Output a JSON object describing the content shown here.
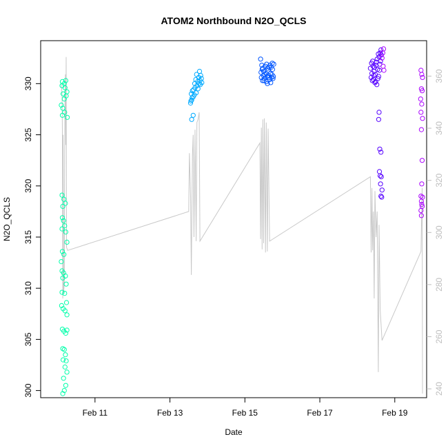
{
  "chart_data": {
    "type": "scatter",
    "title": "ATOM2 Northbound N2O_QCLS",
    "xlabel": "Date",
    "ylabel": "N2O_QCLS",
    "xlim": [
      9.55,
      19.85
    ],
    "ylim": [
      299.3,
      334.2
    ],
    "y2lim": [
      236.6,
      373.6
    ],
    "x_ticks": [
      {
        "value": 11,
        "label": "Feb 11"
      },
      {
        "value": 13,
        "label": "Feb 13"
      },
      {
        "value": 15,
        "label": "Feb 15"
      },
      {
        "value": 17,
        "label": "Feb 17"
      },
      {
        "value": 19,
        "label": "Feb 19"
      }
    ],
    "y_ticks": [
      300,
      305,
      310,
      315,
      320,
      325,
      330
    ],
    "y2_ticks": [
      240,
      260,
      280,
      300,
      320,
      340,
      360
    ],
    "grid": false,
    "series": [
      {
        "color": "#00ffaa",
        "points": [
          [
            10.13,
            330.2
          ],
          [
            10.18,
            330.0
          ],
          [
            10.22,
            330.3
          ],
          [
            10.12,
            329.8
          ],
          [
            10.2,
            329.6
          ],
          [
            10.25,
            329.2
          ],
          [
            10.15,
            329.0
          ],
          [
            10.23,
            328.8
          ],
          [
            10.18,
            328.5
          ],
          [
            10.1,
            327.9
          ],
          [
            10.14,
            327.6
          ],
          [
            10.19,
            327.2
          ],
          [
            10.13,
            326.9
          ],
          [
            10.26,
            326.7
          ],
          [
            10.12,
            319.1
          ],
          [
            10.17,
            318.7
          ],
          [
            10.21,
            318.3
          ],
          [
            10.14,
            318.0
          ],
          [
            10.13,
            316.9
          ],
          [
            10.16,
            316.6
          ],
          [
            10.19,
            316.1
          ],
          [
            10.12,
            315.8
          ],
          [
            10.22,
            315.5
          ],
          [
            10.25,
            314.5
          ],
          [
            10.13,
            313.6
          ],
          [
            10.17,
            313.3
          ],
          [
            10.1,
            312.6
          ],
          [
            10.12,
            311.7
          ],
          [
            10.16,
            311.5
          ],
          [
            10.21,
            311.2
          ],
          [
            10.14,
            311.0
          ],
          [
            10.23,
            310.4
          ],
          [
            10.12,
            309.6
          ],
          [
            10.19,
            309.5
          ],
          [
            10.24,
            308.6
          ],
          [
            10.11,
            308.3
          ],
          [
            10.15,
            308.0
          ],
          [
            10.2,
            307.8
          ],
          [
            10.25,
            307.4
          ],
          [
            10.13,
            306.0
          ],
          [
            10.17,
            305.8
          ],
          [
            10.22,
            305.6
          ],
          [
            10.25,
            305.9
          ],
          [
            10.14,
            304.1
          ],
          [
            10.18,
            304.0
          ],
          [
            10.21,
            303.5
          ],
          [
            10.15,
            303.0
          ],
          [
            10.23,
            302.9
          ],
          [
            10.2,
            302.3
          ],
          [
            10.25,
            301.8
          ],
          [
            10.16,
            301.2
          ],
          [
            10.22,
            300.5
          ],
          [
            10.18,
            300.0
          ],
          [
            10.14,
            299.7
          ]
        ]
      },
      {
        "color": "#00aaff",
        "points": [
          [
            13.55,
            328.1
          ],
          [
            13.58,
            328.4
          ],
          [
            13.62,
            328.7
          ],
          [
            13.57,
            329.0
          ],
          [
            13.6,
            329.3
          ],
          [
            13.65,
            328.9
          ],
          [
            13.7,
            329.1
          ],
          [
            13.67,
            329.6
          ],
          [
            13.72,
            329.8
          ],
          [
            13.75,
            329.5
          ],
          [
            13.78,
            330.0
          ],
          [
            13.8,
            330.3
          ],
          [
            13.77,
            330.6
          ],
          [
            13.82,
            330.8
          ],
          [
            13.79,
            331.2
          ],
          [
            13.84,
            330.5
          ],
          [
            13.74,
            330.2
          ],
          [
            13.69,
            330.4
          ],
          [
            13.63,
            329.4
          ],
          [
            13.59,
            328.6
          ],
          [
            13.56,
            328.3
          ],
          [
            13.66,
            330.0
          ],
          [
            13.71,
            330.9
          ],
          [
            13.62,
            326.9
          ],
          [
            13.58,
            326.5
          ],
          [
            13.81,
            329.9
          ],
          [
            13.85,
            330.1
          ]
        ]
      },
      {
        "color": "#0055ff",
        "points": [
          [
            15.42,
            332.4
          ],
          [
            15.45,
            331.8
          ],
          [
            15.48,
            331.5
          ],
          [
            15.5,
            331.2
          ],
          [
            15.53,
            330.9
          ],
          [
            15.56,
            331.0
          ],
          [
            15.59,
            330.7
          ],
          [
            15.62,
            331.3
          ],
          [
            15.65,
            331.6
          ],
          [
            15.68,
            331.0
          ],
          [
            15.71,
            330.6
          ],
          [
            15.74,
            331.4
          ],
          [
            15.77,
            331.9
          ],
          [
            15.44,
            330.6
          ],
          [
            15.47,
            330.3
          ],
          [
            15.52,
            330.5
          ],
          [
            15.57,
            330.2
          ],
          [
            15.6,
            330.0
          ],
          [
            15.63,
            330.8
          ],
          [
            15.66,
            330.4
          ],
          [
            15.69,
            330.1
          ],
          [
            15.72,
            330.9
          ],
          [
            15.75,
            330.5
          ],
          [
            15.46,
            331.4
          ],
          [
            15.54,
            331.7
          ],
          [
            15.61,
            331.5
          ],
          [
            15.7,
            331.6
          ],
          [
            15.73,
            332.0
          ],
          [
            15.49,
            330.8
          ],
          [
            15.58,
            331.9
          ],
          [
            15.64,
            330.6
          ],
          [
            15.76,
            330.7
          ],
          [
            15.43,
            331.1
          ],
          [
            15.51,
            330.3
          ],
          [
            15.67,
            331.8
          ]
        ]
      },
      {
        "color": "#5500ff",
        "points": [
          [
            18.35,
            331.5
          ],
          [
            18.38,
            332.0
          ],
          [
            18.42,
            331.7
          ],
          [
            18.45,
            331.2
          ],
          [
            18.48,
            330.9
          ],
          [
            18.5,
            331.8
          ],
          [
            18.53,
            332.4
          ],
          [
            18.56,
            332.9
          ],
          [
            18.58,
            332.6
          ],
          [
            18.61,
            333.0
          ],
          [
            18.63,
            333.3
          ],
          [
            18.37,
            330.6
          ],
          [
            18.4,
            330.3
          ],
          [
            18.44,
            330.8
          ],
          [
            18.47,
            330.1
          ],
          [
            18.52,
            329.9
          ],
          [
            18.55,
            330.5
          ],
          [
            18.59,
            331.3
          ],
          [
            18.62,
            332.2
          ],
          [
            18.39,
            331.0
          ],
          [
            18.43,
            330.4
          ],
          [
            18.46,
            331.6
          ],
          [
            18.51,
            332.1
          ],
          [
            18.54,
            331.4
          ],
          [
            18.57,
            330.7
          ],
          [
            18.6,
            331.9
          ],
          [
            18.64,
            332.8
          ],
          [
            18.41,
            332.2
          ],
          [
            18.49,
            330.2
          ],
          [
            18.58,
            327.2
          ],
          [
            18.57,
            326.5
          ],
          [
            18.6,
            323.6
          ],
          [
            18.63,
            323.3
          ],
          [
            18.59,
            321.4
          ],
          [
            18.61,
            321.0
          ],
          [
            18.64,
            320.9
          ],
          [
            18.62,
            320.2
          ],
          [
            18.63,
            319.0
          ],
          [
            18.65,
            318.9
          ],
          [
            18.66,
            319.6
          ]
        ]
      },
      {
        "color": "#aa00ff",
        "points": [
          [
            18.7,
            333.4
          ],
          [
            18.68,
            333.0
          ],
          [
            18.66,
            332.5
          ],
          [
            18.69,
            331.7
          ],
          [
            18.71,
            331.3
          ],
          [
            19.7,
            331.3
          ],
          [
            19.72,
            330.9
          ],
          [
            19.74,
            330.6
          ],
          [
            19.71,
            329.5
          ],
          [
            19.73,
            329.3
          ],
          [
            19.69,
            328.5
          ],
          [
            19.72,
            328.0
          ],
          [
            19.7,
            327.2
          ],
          [
            19.74,
            326.6
          ],
          [
            19.71,
            325.5
          ],
          [
            19.73,
            322.5
          ],
          [
            19.72,
            320.2
          ],
          [
            19.7,
            319.0
          ],
          [
            19.74,
            318.9
          ],
          [
            19.71,
            318.5
          ],
          [
            19.72,
            318.2
          ],
          [
            19.73,
            318.0
          ],
          [
            19.7,
            317.6
          ],
          [
            19.71,
            317.1
          ]
        ]
      }
    ],
    "secondary_line": {
      "color": "#c8c8c8",
      "points": [
        [
          10.1,
          330.0
        ],
        [
          10.12,
          329.0
        ],
        [
          10.13,
          325.5
        ],
        [
          10.14,
          309.0
        ],
        [
          10.15,
          325.0
        ],
        [
          10.16,
          309.5
        ],
        [
          10.18,
          310.5
        ],
        [
          10.19,
          323.0
        ],
        [
          10.2,
          328.5
        ],
        [
          10.21,
          330.9
        ],
        [
          10.22,
          324.0
        ],
        [
          10.23,
          332.6
        ],
        [
          10.24,
          314.0
        ],
        [
          10.27,
          313.7
        ],
        [
          13.5,
          317.5
        ],
        [
          13.52,
          323.2
        ],
        [
          13.55,
          319.0
        ],
        [
          13.57,
          311.3
        ],
        [
          13.6,
          323.0
        ],
        [
          13.62,
          325.0
        ],
        [
          13.64,
          315.0
        ],
        [
          13.67,
          325.5
        ],
        [
          13.7,
          314.6
        ],
        [
          13.72,
          326.2
        ],
        [
          13.75,
          326.5
        ],
        [
          13.78,
          327.2
        ],
        [
          13.8,
          314.6
        ],
        [
          15.4,
          324.2
        ],
        [
          15.42,
          314.8
        ],
        [
          15.44,
          325.7
        ],
        [
          15.46,
          313.8
        ],
        [
          15.48,
          326.5
        ],
        [
          15.5,
          314.4
        ],
        [
          15.52,
          326.6
        ],
        [
          15.55,
          313.5
        ],
        [
          15.57,
          326.2
        ],
        [
          15.6,
          313.6
        ],
        [
          15.62,
          325.6
        ],
        [
          15.66,
          314.6
        ],
        [
          18.35,
          320.9
        ],
        [
          18.37,
          313.5
        ],
        [
          18.39,
          319.8
        ],
        [
          18.41,
          313.7
        ],
        [
          18.43,
          317.5
        ],
        [
          18.45,
          309.0
        ],
        [
          18.47,
          319.5
        ],
        [
          18.5,
          315.0
        ],
        [
          18.53,
          317.5
        ],
        [
          18.56,
          301.8
        ],
        [
          18.58,
          316.2
        ],
        [
          18.61,
          307.9
        ],
        [
          18.66,
          304.9
        ],
        [
          19.7,
          313.6
        ],
        [
          19.73,
          319.8
        ],
        [
          19.74,
          299.7
        ]
      ]
    }
  }
}
